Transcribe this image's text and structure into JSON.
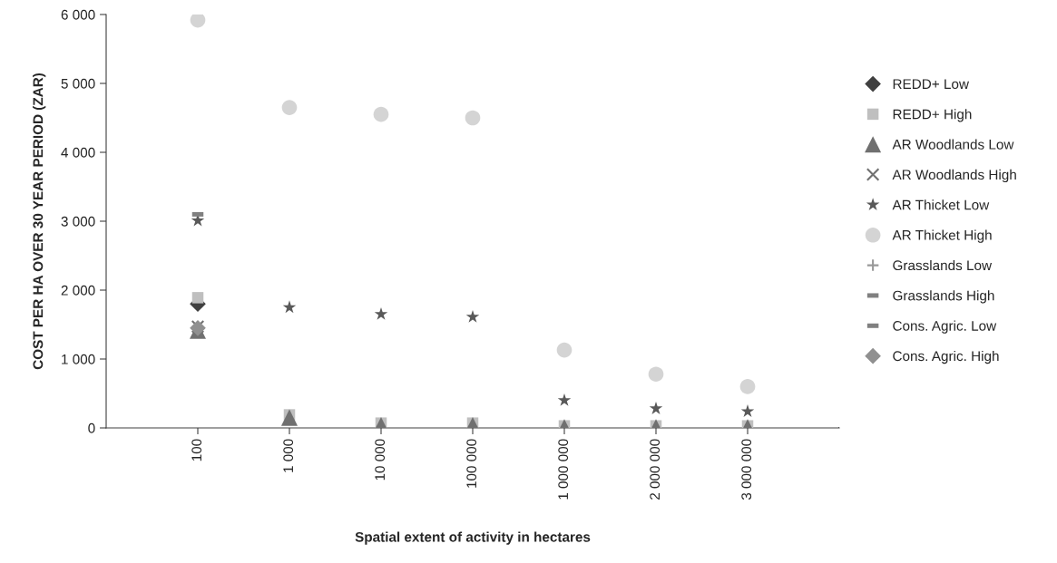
{
  "chart_data": {
    "type": "scatter",
    "xlabel": "Spatial extent of activity in hectares",
    "ylabel": "COST PER HA OVER 30 YEAR PERIOD (ZAR)",
    "categories": [
      "100",
      "1 000",
      "10 000",
      "100 000",
      "1 000 000",
      "2 000 000",
      "3 000 000"
    ],
    "ylim": [
      0,
      6000
    ],
    "yticks": [
      0,
      {
        "value": 1000,
        "label": "1 000"
      },
      {
        "value": 2000,
        "label": "2 000"
      },
      {
        "value": 3000,
        "label": "3 000"
      },
      {
        "value": 4000,
        "label": "4 000"
      },
      {
        "value": 5000,
        "label": "5 000"
      },
      {
        "value": 6000,
        "label": "6 000"
      }
    ],
    "grid": false,
    "legend": "right",
    "series": [
      {
        "name": "REDD+ Low",
        "color": "#404040",
        "marker": "diamond",
        "values": [
          1800,
          null,
          null,
          null,
          null,
          null,
          null
        ]
      },
      {
        "name": "REDD+ High",
        "color": "#bfbfbf",
        "marker": "square",
        "values": [
          1890,
          190,
          70,
          70,
          30,
          30,
          30
        ]
      },
      {
        "name": "AR Woodlands Low",
        "color": "#707070",
        "marker": "triangle",
        "values": [
          1410,
          150,
          40,
          40,
          10,
          10,
          10
        ]
      },
      {
        "name": "AR Woodlands High",
        "color": "#707070",
        "marker": "cross",
        "values": [
          1470,
          null,
          null,
          null,
          null,
          null,
          null
        ]
      },
      {
        "name": "AR Thicket Low",
        "color": "#595959",
        "marker": "star",
        "values": [
          3010,
          1750,
          1650,
          1610,
          400,
          280,
          240
        ]
      },
      {
        "name": "AR Thicket High",
        "color": "#d4d4d4",
        "marker": "circle",
        "values": [
          5920,
          4650,
          4550,
          4500,
          1130,
          780,
          600
        ]
      },
      {
        "name": "Grasslands Low",
        "color": "#999999",
        "marker": "plus",
        "values": [
          null,
          null,
          null,
          null,
          null,
          null,
          null
        ]
      },
      {
        "name": "Grasslands High",
        "color": "#808080",
        "values": [
          3100,
          null,
          null,
          null,
          null,
          null,
          null
        ]
      },
      {
        "name": "Cons. Agric. Low",
        "color": "#808080",
        "values": [
          null,
          null,
          null,
          null,
          null,
          null,
          null
        ]
      },
      {
        "name": "Cons. Agric. High",
        "color": "#909090",
        "marker": "diamond",
        "values": [
          1450,
          null,
          null,
          null,
          null,
          null,
          null
        ]
      }
    ]
  }
}
